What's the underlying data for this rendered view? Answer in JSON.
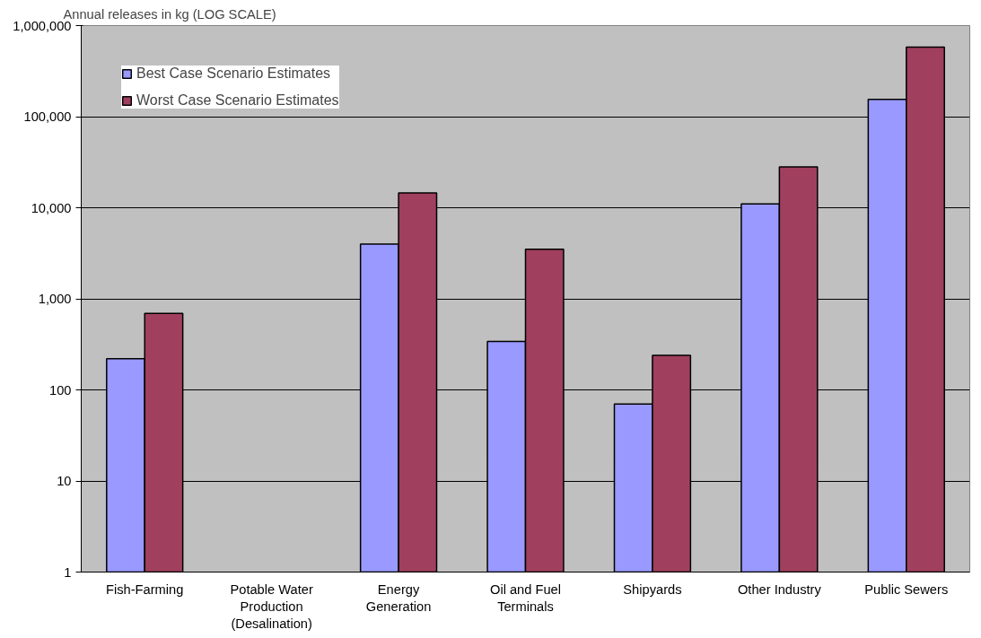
{
  "chart_data": {
    "type": "bar",
    "ylabel": "Annual releases in kg (LOG SCALE)",
    "categories": [
      "Fish-Farming",
      "Potable Water\nProduction\n(Desalination)",
      "Energy\nGeneration",
      "Oil and Fuel\nTerminals",
      "Shipyards",
      "Other Industry",
      "Public Sewers"
    ],
    "series": [
      {
        "name": "Best Case Scenario Estimates",
        "color": "#9999ff",
        "values": [
          220,
          null,
          4000,
          340,
          70,
          11000,
          155000
        ]
      },
      {
        "name": "Worst Case Scenario Estimates",
        "color": "#a0405e",
        "values": [
          690,
          null,
          14500,
          3500,
          240,
          28000,
          580000
        ]
      }
    ],
    "log": true,
    "ylim": [
      1,
      1000000
    ],
    "yticks": [
      1,
      10,
      100,
      {
        "value": 1000,
        "label": "1,000"
      },
      {
        "value": 10000,
        "label": "10,000"
      },
      {
        "value": 100000,
        "label": "100,000"
      },
      {
        "value": 1000000,
        "label": "1,000,000"
      }
    ],
    "grid": "y",
    "legend": "top left"
  }
}
